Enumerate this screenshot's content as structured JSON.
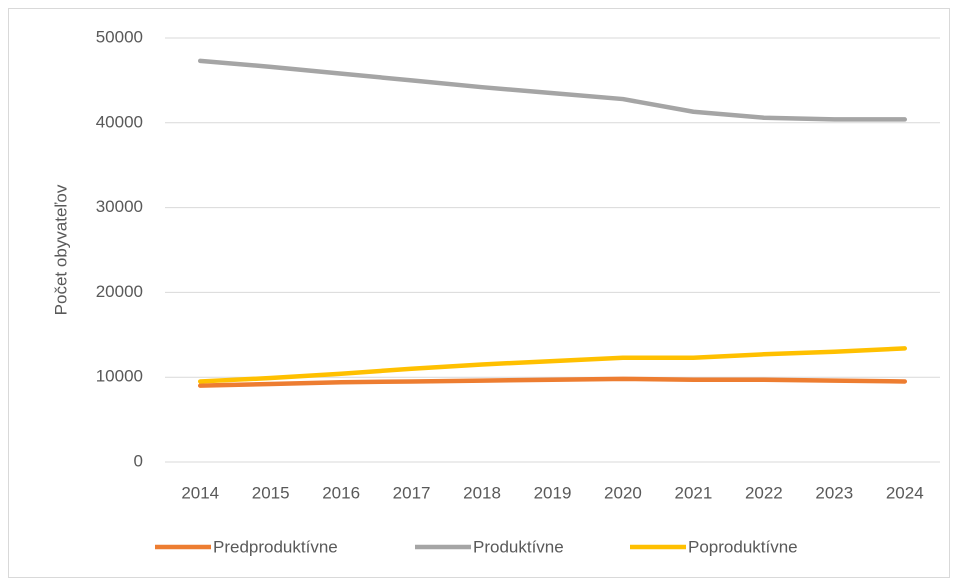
{
  "chart_data": {
    "type": "line",
    "y_label": "Počet obyvateľov",
    "categories": [
      "2014",
      "2015",
      "2016",
      "2017",
      "2018",
      "2019",
      "2020",
      "2021",
      "2022",
      "2023",
      "2024"
    ],
    "series": [
      {
        "name": "Predproduktívne",
        "color": "#ed7d31",
        "values": [
          9000,
          9200,
          9400,
          9500,
          9600,
          9700,
          9800,
          9700,
          9700,
          9600,
          9500
        ]
      },
      {
        "name": "Produktívne",
        "color": "#a5a5a5",
        "values": [
          47300,
          46600,
          45800,
          45000,
          44200,
          43500,
          42800,
          41300,
          40600,
          40400,
          40400
        ]
      },
      {
        "name": "Poproduktívne",
        "color": "#ffc000",
        "values": [
          9500,
          9900,
          10400,
          11000,
          11500,
          11900,
          12300,
          12300,
          12700,
          13000,
          13400
        ]
      }
    ],
    "ylim": [
      0,
      50000
    ],
    "yticks": [
      0,
      10000,
      20000,
      30000,
      40000,
      50000
    ],
    "grid": true,
    "legend": "bottom"
  }
}
